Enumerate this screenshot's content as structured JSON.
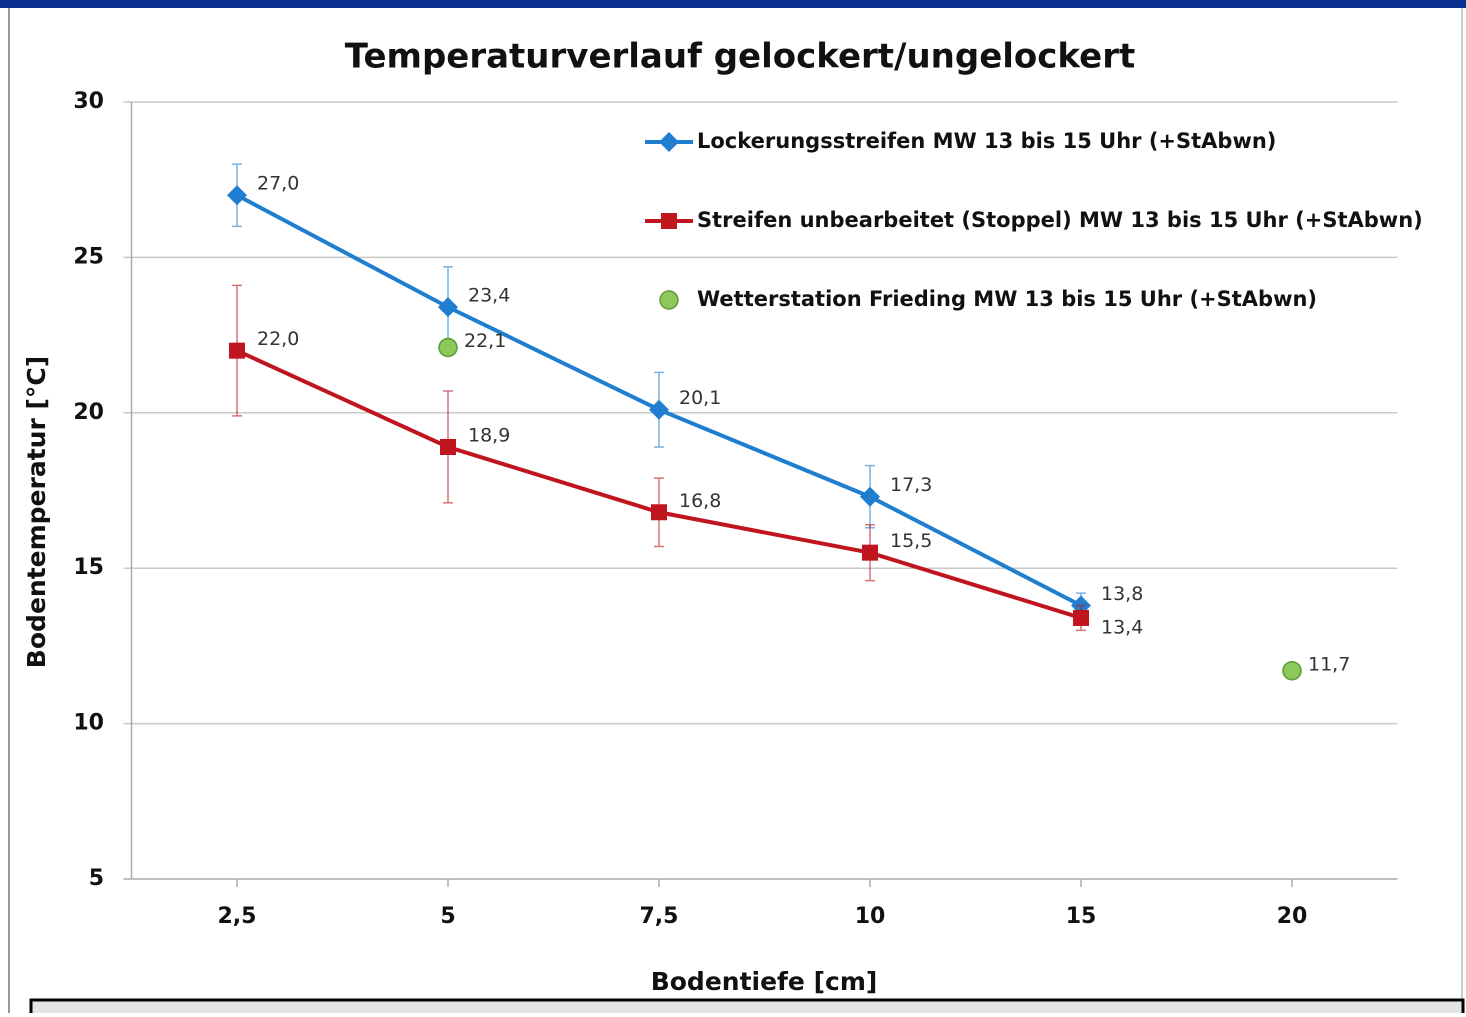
{
  "chart_data": {
    "type": "line",
    "title": "Temperaturverlauf  gelockert/ungelockert",
    "xlabel": "Bodentiefe [cm]",
    "ylabel": "Bodentemperatur [°C]",
    "categories": [
      "2,5",
      "5",
      "7,5",
      "10",
      "15",
      "20"
    ],
    "ylim": [
      5,
      30
    ],
    "yticks": [
      5,
      10,
      15,
      20,
      25,
      30
    ],
    "grid": true,
    "legend": "upper right",
    "series": [
      {
        "name": "Lockerungsstreifen MW 13 bis 15 Uhr (+StAbwn)",
        "color": "#1f7ed0",
        "marker": "diamond",
        "line": true,
        "values": [
          27.0,
          23.4,
          20.1,
          17.3,
          13.8,
          null
        ],
        "value_labels": [
          "27,0",
          "23,4",
          "20,1",
          "17,3",
          "13,8",
          null
        ],
        "errors": [
          1.0,
          1.3,
          1.2,
          1.0,
          0.4,
          null
        ]
      },
      {
        "name": "Streifen unbearbeitet (Stoppel) MW 13 bis 15 Uhr (+StAbwn)",
        "color": "#c0141e",
        "marker": "square",
        "line": true,
        "values": [
          22.0,
          18.9,
          16.8,
          15.5,
          13.4,
          null
        ],
        "value_labels": [
          "22,0",
          "18,9",
          "16,8",
          "15,5",
          "13,4",
          null
        ],
        "errors": [
          2.1,
          1.8,
          1.1,
          0.9,
          0.4,
          null
        ]
      },
      {
        "name": "Wetterstation Frieding MW 13 bis 15 Uhr (+StAbwn)",
        "color": "#8cc95a",
        "marker": "circle",
        "line": false,
        "values": [
          null,
          22.1,
          null,
          null,
          null,
          11.7
        ],
        "value_labels": [
          null,
          "22,1",
          null,
          null,
          null,
          "11,7"
        ]
      }
    ]
  }
}
